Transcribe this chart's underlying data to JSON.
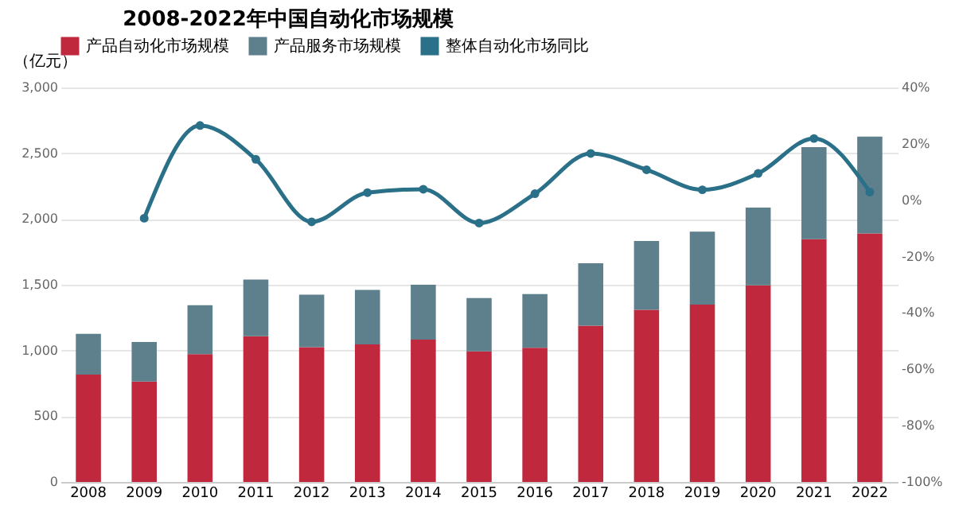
{
  "chart_data": {
    "type": "bar",
    "title": "2008-2022年中国自动化市场规模",
    "ylabel": "（亿元）",
    "stacked": true,
    "categories": [
      "2008",
      "2009",
      "2010",
      "2011",
      "2012",
      "2013",
      "2014",
      "2015",
      "2016",
      "2017",
      "2018",
      "2019",
      "2020",
      "2021",
      "2022"
    ],
    "series": [
      {
        "name": "产品自动化市场规模",
        "color": "#c0283e",
        "values": [
          817,
          763,
          972,
          1109,
          1025,
          1047,
          1083,
          994,
          1021,
          1189,
          1309,
          1349,
          1496,
          1846,
          1890
        ]
      },
      {
        "name": "产品服务市场规模",
        "color": "#5e808c",
        "values": [
          310,
          302,
          373,
          431,
          399,
          413,
          417,
          404,
          408,
          475,
          524,
          555,
          590,
          701,
          737
        ]
      },
      {
        "name": "整体自动化市场同比",
        "type": "line",
        "axis": "y2",
        "color": "#2a7088",
        "marker": "circle",
        "values": [
          null,
          -6.4,
          26.5,
          14.5,
          -7.7,
          2.7,
          3.9,
          -8.1,
          2.3,
          16.6,
          10.8,
          3.7,
          9.5,
          21.9,
          2.9
        ]
      }
    ],
    "ylim": [
      0,
      3000
    ],
    "yticks": [
      0,
      500,
      {
        "value": 1000,
        "label": "1,000"
      },
      {
        "value": 1500,
        "label": "1,500"
      },
      {
        "value": 2000,
        "label": "2,000"
      },
      {
        "value": 2500,
        "label": "2,500"
      },
      {
        "value": 3000,
        "label": "3,000"
      }
    ],
    "y2lim": [
      -100,
      40
    ],
    "y2ticks": [
      {
        "value": -100,
        "label": "-100%"
      },
      {
        "value": -80,
        "label": "-80%"
      },
      {
        "value": -60,
        "label": "-60%"
      },
      {
        "value": -40,
        "label": "-40%"
      },
      {
        "value": -20,
        "label": "-20%"
      },
      {
        "value": 0,
        "label": "0%"
      },
      {
        "value": 20,
        "label": "20%"
      },
      {
        "value": 40,
        "label": "40%"
      }
    ],
    "grid": "y",
    "legend": "top"
  }
}
